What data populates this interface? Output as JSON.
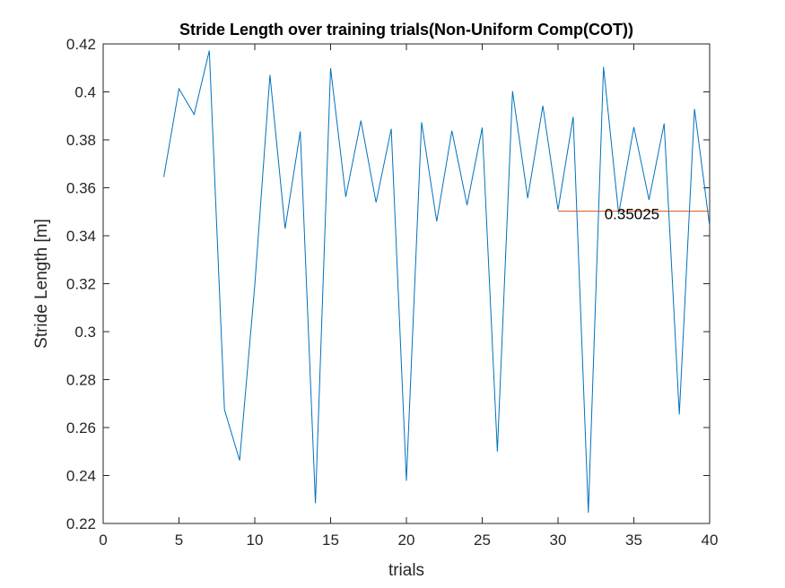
{
  "chart_data": {
    "type": "line",
    "title": "Stride Length over training trials(Non-Uniform Comp(COT))",
    "xlabel": "trials",
    "ylabel": "Stride Length [m]",
    "xlim": [
      0,
      40
    ],
    "ylim": [
      0.22,
      0.42
    ],
    "xticks": [
      0,
      5,
      10,
      15,
      20,
      25,
      30,
      35,
      40
    ],
    "yticks": [
      0.22,
      0.24,
      0.26,
      0.28,
      0.3,
      0.32,
      0.34,
      0.36,
      0.38,
      0.4,
      0.42
    ],
    "xtick_labels": [
      "0",
      "5",
      "10",
      "15",
      "20",
      "25",
      "30",
      "35",
      "40"
    ],
    "ytick_labels": [
      "0.22",
      "0.24",
      "0.26",
      "0.28",
      "0.3",
      "0.32",
      "0.34",
      "0.36",
      "0.38",
      "0.4",
      "0.42"
    ],
    "grid": false,
    "series": [
      {
        "color": "#0072BD",
        "x": [
          4,
          5,
          6,
          7,
          8,
          9,
          10,
          11,
          12,
          13,
          14,
          15,
          16,
          17,
          18,
          19,
          20,
          21,
          22,
          23,
          24,
          25,
          26,
          27,
          28,
          29,
          30,
          31,
          32,
          33,
          34,
          35,
          36,
          37,
          38,
          39,
          40
        ],
        "y": [
          0.3645,
          0.4013,
          0.3906,
          0.4172,
          0.2675,
          0.2463,
          0.3194,
          0.4071,
          0.343,
          0.3835,
          0.2284,
          0.4099,
          0.3562,
          0.388,
          0.3539,
          0.3846,
          0.2378,
          0.3873,
          0.346,
          0.3838,
          0.3528,
          0.3851,
          0.25,
          0.4003,
          0.3557,
          0.3942,
          0.3508,
          0.3896,
          0.2245,
          0.4104,
          0.349,
          0.3853,
          0.355,
          0.3868,
          0.2655,
          0.3929,
          0.344
        ]
      },
      {
        "color": "#D95319",
        "x": [
          30,
          40
        ],
        "y": [
          0.35025,
          0.35025
        ]
      }
    ],
    "annotations": [
      {
        "text": "0.35025",
        "x": 33,
        "y": 0.35025
      }
    ]
  }
}
